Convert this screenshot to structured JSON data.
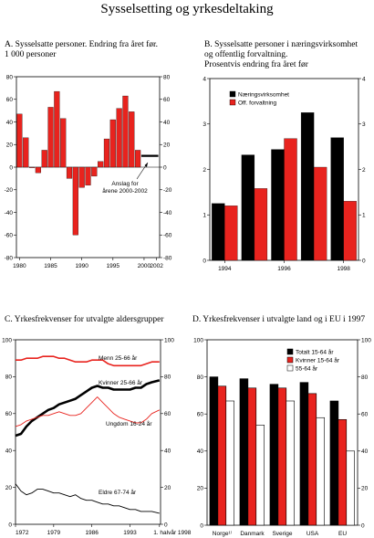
{
  "title": "Sysselsetting og yrkesdeltaking",
  "chart_data": [
    {
      "id": "A",
      "type": "bar",
      "title": "A.  Sysselsatte personer. Endring fra året før.\n     1 000 personer",
      "x": [
        1980,
        1981,
        1982,
        1983,
        1984,
        1985,
        1986,
        1987,
        1988,
        1989,
        1990,
        1991,
        1992,
        1993,
        1994,
        1995,
        1996,
        1997,
        1998,
        1999
      ],
      "values": [
        47,
        26,
        0,
        -5,
        15,
        53,
        67,
        43,
        -10,
        -60,
        -18,
        -16,
        -8,
        5,
        25,
        42,
        52,
        63,
        49,
        15
      ],
      "forecast": {
        "x_start": 2000,
        "x_end": 2002,
        "value": 10
      },
      "annotation": "Anslag  for\nårene 2000-2002",
      "xticks": [
        "1980",
        "1985",
        "1990",
        "1995",
        "2000",
        "2002"
      ],
      "yticks": [
        "80",
        "60",
        "40",
        "20",
        "0",
        "-20",
        "-40",
        "-60",
        "-80"
      ],
      "ylim": [
        -80,
        80
      ],
      "bar_color": "#e8231e"
    },
    {
      "id": "B",
      "type": "bar",
      "title": "B.  Sysselsatte personer i næringsvirksomhet\n     og offentlig forvaltning.\n     Prosentvis endring fra året før",
      "categories": [
        "1994",
        "1995",
        "1996",
        "1997",
        "1998"
      ],
      "xticks": [
        "1994",
        "1996",
        "1998"
      ],
      "yticks": [
        "4",
        "3",
        "2",
        "1",
        "0"
      ],
      "ylim": [
        0,
        4
      ],
      "series": [
        {
          "name": "Næringsvirksomhet",
          "color": "#000000",
          "values": [
            1.25,
            2.32,
            2.44,
            3.25,
            2.7
          ]
        },
        {
          "name": "Off. forvaltning",
          "color": "#e8231e",
          "values": [
            1.2,
            1.58,
            2.68,
            2.05,
            1.3
          ]
        }
      ]
    },
    {
      "id": "C",
      "type": "line",
      "title": "C.  Yrkesfrekvenser for utvalgte aldersgrupper",
      "xticks": [
        "1972",
        "1979",
        "1986",
        "1993",
        "1. halvår 1998"
      ],
      "yticks": [
        "100",
        "80",
        "60",
        "40",
        "20",
        "0"
      ],
      "ylim": [
        0,
        100
      ],
      "series": [
        {
          "name": "Menn 25-66 år",
          "color": "#e8231e",
          "width": 1.6,
          "points": [
            [
              1972,
              89
            ],
            [
              1973,
              89
            ],
            [
              1974,
              90
            ],
            [
              1975,
              90
            ],
            [
              1976,
              90
            ],
            [
              1977,
              91
            ],
            [
              1978,
              91
            ],
            [
              1979,
              91
            ],
            [
              1980,
              90
            ],
            [
              1981,
              90
            ],
            [
              1982,
              89
            ],
            [
              1983,
              88
            ],
            [
              1984,
              88
            ],
            [
              1985,
              88
            ],
            [
              1986,
              89
            ],
            [
              1987,
              89
            ],
            [
              1988,
              89
            ],
            [
              1989,
              87
            ],
            [
              1990,
              86
            ],
            [
              1991,
              86
            ],
            [
              1992,
              86
            ],
            [
              1993,
              86
            ],
            [
              1994,
              86
            ],
            [
              1995,
              86
            ],
            [
              1996,
              87
            ],
            [
              1997,
              88
            ],
            [
              1998.4,
              88
            ]
          ]
        },
        {
          "name": "Kvinner 25-66 år",
          "color": "#000000",
          "width": 2.6,
          "points": [
            [
              1972,
              48
            ],
            [
              1973,
              49
            ],
            [
              1974,
              53
            ],
            [
              1975,
              56
            ],
            [
              1976,
              58
            ],
            [
              1977,
              60
            ],
            [
              1978,
              62
            ],
            [
              1979,
              63
            ],
            [
              1980,
              65
            ],
            [
              1981,
              66
            ],
            [
              1982,
              67
            ],
            [
              1983,
              68
            ],
            [
              1984,
              70
            ],
            [
              1985,
              72
            ],
            [
              1986,
              74
            ],
            [
              1987,
              75
            ],
            [
              1988,
              74
            ],
            [
              1989,
              74
            ],
            [
              1990,
              73
            ],
            [
              1991,
              73
            ],
            [
              1992,
              73
            ],
            [
              1993,
              73
            ],
            [
              1994,
              74
            ],
            [
              1995,
              74
            ],
            [
              1996,
              76
            ],
            [
              1997,
              77
            ],
            [
              1998.4,
              78
            ]
          ]
        },
        {
          "name": "Ungdom 16-24 år",
          "color": "#e8231e",
          "width": 0.9,
          "points": [
            [
              1972,
              53
            ],
            [
              1973,
              54
            ],
            [
              1974,
              56
            ],
            [
              1975,
              57
            ],
            [
              1976,
              58
            ],
            [
              1977,
              59
            ],
            [
              1978,
              59
            ],
            [
              1979,
              60
            ],
            [
              1980,
              61
            ],
            [
              1981,
              60
            ],
            [
              1982,
              59
            ],
            [
              1983,
              59
            ],
            [
              1984,
              60
            ],
            [
              1985,
              63
            ],
            [
              1986,
              66
            ],
            [
              1987,
              69
            ],
            [
              1988,
              66
            ],
            [
              1989,
              63
            ],
            [
              1990,
              60
            ],
            [
              1991,
              58
            ],
            [
              1992,
              57
            ],
            [
              1993,
              56
            ],
            [
              1994,
              55
            ],
            [
              1995,
              55
            ],
            [
              1996,
              57
            ],
            [
              1997,
              60
            ],
            [
              1998.4,
              62
            ]
          ]
        },
        {
          "name": "Eldre 67-74 år",
          "color": "#000000",
          "width": 0.9,
          "points": [
            [
              1972,
              22
            ],
            [
              1973,
              18
            ],
            [
              1974,
              16
            ],
            [
              1975,
              17
            ],
            [
              1976,
              19
            ],
            [
              1977,
              19
            ],
            [
              1978,
              18
            ],
            [
              1979,
              17
            ],
            [
              1980,
              17
            ],
            [
              1981,
              16
            ],
            [
              1982,
              15
            ],
            [
              1983,
              16
            ],
            [
              1984,
              14
            ],
            [
              1985,
              13
            ],
            [
              1986,
              13
            ],
            [
              1987,
              12
            ],
            [
              1988,
              11
            ],
            [
              1989,
              11
            ],
            [
              1990,
              10
            ],
            [
              1991,
              10
            ],
            [
              1992,
              9
            ],
            [
              1993,
              8
            ],
            [
              1994,
              8
            ],
            [
              1995,
              7
            ],
            [
              1996,
              7
            ],
            [
              1997,
              7
            ],
            [
              1998.4,
              6
            ]
          ]
        }
      ]
    },
    {
      "id": "D",
      "type": "bar",
      "title": "D.  Yrkesfrekvenser i utvalgte land og i EU i 1997",
      "categories": [
        "Norge¹⁾",
        "Danmark",
        "Sverige",
        "USA",
        "EU"
      ],
      "yticks": [
        "100",
        "80",
        "60",
        "40",
        "20",
        "0"
      ],
      "ylim": [
        0,
        100
      ],
      "series": [
        {
          "name": "Totalt 15-64 år",
          "color": "#000000",
          "values": [
            80,
            79,
            76,
            77,
            67
          ]
        },
        {
          "name": "Kvinner 15-64 år",
          "color": "#e8231e",
          "values": [
            75,
            74,
            74,
            71,
            57
          ]
        },
        {
          "name": "55-64 år",
          "color": "#ffffff",
          "values": [
            67,
            54,
            67,
            58,
            40
          ]
        }
      ]
    }
  ]
}
